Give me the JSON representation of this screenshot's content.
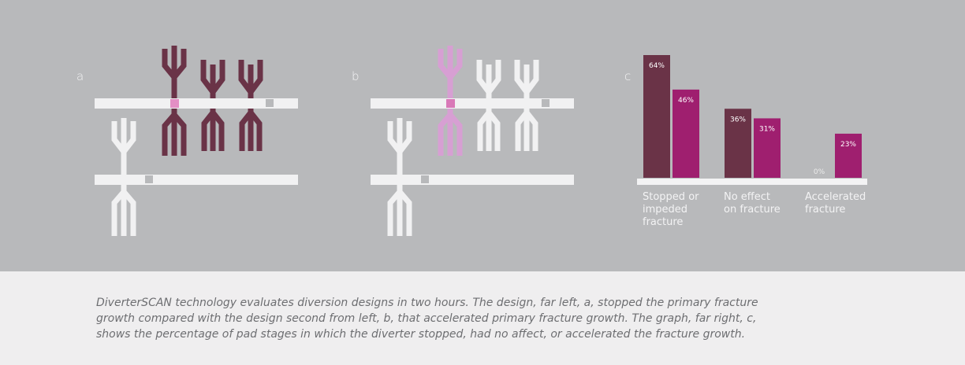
{
  "panels": {
    "a": "a",
    "b": "b",
    "c": "c"
  },
  "colors": {
    "background_top": "#b8b9bb",
    "background_bottom": "#efeeef",
    "pipe": "#f1f1f2",
    "dark_branch": "#6a3347",
    "pink_branch": "#d79fd3",
    "white_branch": "#f1f1f2",
    "bar_stopped": "#6a3347",
    "bar_other": "#9f1f6f",
    "caption_text": "#6d6e71"
  },
  "chart_data": {
    "type": "bar",
    "categories": [
      "Stopped or impeded fracture",
      "No effect on fracture",
      "Accelerated fracture"
    ],
    "category_label_lines": [
      [
        "Stopped or",
        "impeded",
        "fracture"
      ],
      [
        "No effect",
        "on fracture"
      ],
      [
        "Accelerated",
        "fracture"
      ]
    ],
    "series": [
      {
        "values": [
          64,
          36,
          0
        ],
        "labels": [
          "64%",
          "36%",
          "0%"
        ]
      },
      {
        "values": [
          46,
          31,
          23
        ],
        "labels": [
          "46%",
          "31%",
          "23%"
        ]
      }
    ],
    "ylim": [
      0,
      64
    ],
    "grid": false,
    "legend": "none"
  },
  "caption": {
    "lines": [
      "DiverterSCAN technology evaluates diversion designs in two hours. The design, far left, a, stopped the primary fracture",
      "growth compared with the design second from left, b, that accelerated primary fracture growth. The graph, far right, c,",
      "shows the percentage of pad stages in which the diverter stopped, had no affect, or accelerated the fracture growth."
    ]
  }
}
